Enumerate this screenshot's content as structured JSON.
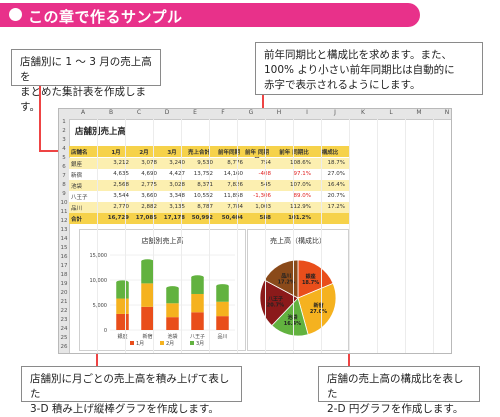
{
  "header": {
    "title": "この章で作るサンプル"
  },
  "callouts": {
    "top_left": "店舗別に 1 ～ 3 月の売上高を\nまとめた集計表を作成します。",
    "top_right": "前年同期比と構成比を求めます。また、\n100% より小さい前年同期比は自動的に\n赤字で表示されるようにします。",
    "bottom_left": "店舗別に月ごとの売上高を積み上げて表した\n3-D 積み上げ縦棒グラフを作成します。",
    "bottom_right": "店舗の売上高の構成比を表した\n2-D 円グラフを作成します。"
  },
  "sheet": {
    "columns": [
      "A",
      "B",
      "C",
      "D",
      "E",
      "F",
      "G",
      "H",
      "I",
      "J",
      "K",
      "L",
      "M",
      "N"
    ],
    "rows": [
      "1",
      "2",
      "3",
      "4",
      "5",
      "6",
      "7",
      "8",
      "9",
      "10",
      "11",
      "12",
      "13",
      "14",
      "15",
      "16",
      "17",
      "18",
      "19",
      "20",
      "21",
      "22",
      "23",
      "24",
      "25",
      "26"
    ],
    "title": "店舗別売上高",
    "table_headers": [
      "店舗名",
      "1月",
      "2月",
      "3月",
      "売上合計",
      "前年同期",
      "前年\n同期差",
      "前年\n同期比",
      "構成比"
    ],
    "table_rows": [
      [
        "銀座",
        "3,212",
        "3,078",
        "3,240",
        "9,530",
        "8,776",
        "754",
        "108.6%",
        "18.7%"
      ],
      [
        "新宿",
        "4,635",
        "4,690",
        "4,427",
        "13,752",
        "14,160",
        "-408",
        "97.1%",
        "27.0%"
      ],
      [
        "池袋",
        "2,568",
        "2,775",
        "3,028",
        "8,371",
        "7,826",
        "545",
        "107.0%",
        "16.4%"
      ],
      [
        "八王子",
        "3,544",
        "3,660",
        "3,348",
        "10,552",
        "11,858",
        "-1,306",
        "89.0%",
        "20.7%"
      ],
      [
        "品川",
        "2,770",
        "2,882",
        "3,135",
        "8,787",
        "7,784",
        "1,003",
        "112.9%",
        "17.2%"
      ]
    ],
    "total_row": [
      "合計",
      "16,729",
      "17,085",
      "17,178",
      "50,992",
      "50,404",
      "588",
      "101.2%",
      ""
    ],
    "red_cells": [
      [
        1,
        6
      ],
      [
        1,
        7
      ],
      [
        3,
        6
      ],
      [
        3,
        7
      ]
    ]
  },
  "chart_data": [
    {
      "type": "bar",
      "title": "店舗別売上高",
      "categories": [
        "銀座",
        "新宿",
        "池袋",
        "八王子",
        "品川"
      ],
      "series": [
        {
          "name": "1月",
          "values": [
            3212,
            4635,
            2568,
            3544,
            2770
          ]
        },
        {
          "name": "2月",
          "values": [
            3078,
            4690,
            2775,
            3660,
            2882
          ]
        },
        {
          "name": "3月",
          "values": [
            3240,
            4427,
            3028,
            3348,
            3135
          ]
        }
      ],
      "ylim": [
        0,
        15000
      ],
      "yticks": [
        "0",
        "5,000",
        "10,000",
        "15,000"
      ],
      "colors": [
        "#e94e1b",
        "#f5b21f",
        "#62b23f"
      ],
      "legend": "bottom"
    },
    {
      "type": "pie",
      "title": "売上高（構成比）",
      "slices": [
        {
          "label": "銀座",
          "value": 18.7,
          "display": "18.7%"
        },
        {
          "label": "新宿",
          "value": 27.0,
          "display": "27.0%"
        },
        {
          "label": "池袋",
          "value": 16.4,
          "display": "16.4%"
        },
        {
          "label": "八王子",
          "value": 20.7,
          "display": "20.7%"
        },
        {
          "label": "品川",
          "value": 17.2,
          "display": "17.2%"
        }
      ],
      "colors": [
        "#e94e1b",
        "#f5b21f",
        "#62b23f",
        "#8b1a1a",
        "#8a4a1a"
      ]
    }
  ]
}
